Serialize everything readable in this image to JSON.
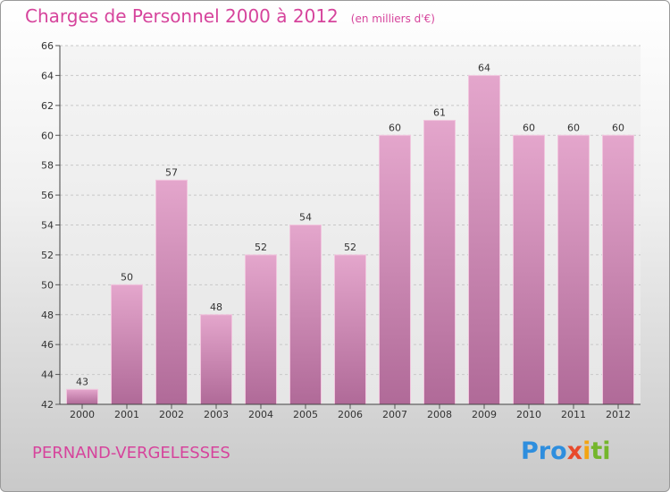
{
  "header": {
    "title": "Charges de Personnel 2000 à 2012",
    "subtitle": "(en milliers d'€)"
  },
  "footer": {
    "commune": "PERNAND-VERGELESSES",
    "logo": "Proxiti"
  },
  "chart_data": {
    "type": "bar",
    "title": "Charges de Personnel 2000 à 2012",
    "subtitle": "(en milliers d'€)",
    "categories": [
      "2000",
      "2001",
      "2002",
      "2003",
      "2004",
      "2005",
      "2006",
      "2007",
      "2008",
      "2009",
      "2010",
      "2011",
      "2012"
    ],
    "values": [
      43,
      50,
      57,
      48,
      52,
      54,
      52,
      60,
      61,
      64,
      60,
      60,
      60
    ],
    "ylim": [
      42,
      66
    ],
    "yticks": [
      42,
      44,
      46,
      48,
      50,
      52,
      54,
      56,
      58,
      60,
      62,
      64,
      66
    ],
    "grid": true,
    "bar_color": "#d991bd"
  }
}
